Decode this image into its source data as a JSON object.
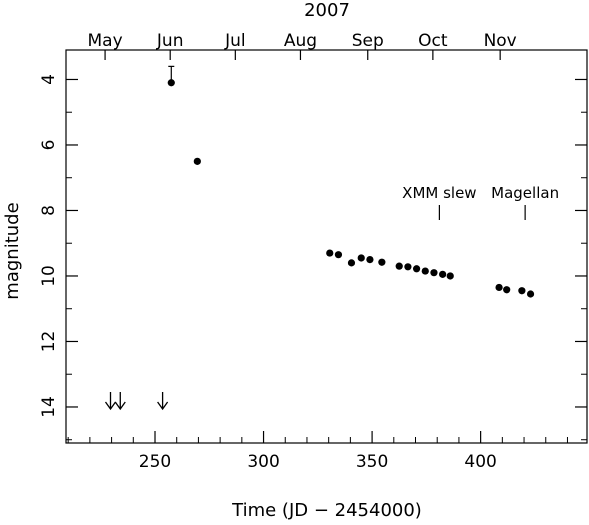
{
  "chart_data": {
    "type": "scatter",
    "top_title": "2007",
    "xlabel": "Time (JD − 2454000)",
    "ylabel": "magnitude",
    "xlim": [
      209,
      449
    ],
    "ylim": [
      15.1,
      3.1
    ],
    "y_inverted": true,
    "grid": false,
    "legend": "none",
    "x_ticks": [
      250,
      300,
      350,
      400
    ],
    "y_ticks": [
      4,
      6,
      8,
      10,
      12,
      14
    ],
    "months": [
      {
        "label": "May",
        "jd": 227
      },
      {
        "label": "Jun",
        "jd": 257
      },
      {
        "label": "Jul",
        "jd": 287
      },
      {
        "label": "Aug",
        "jd": 317
      },
      {
        "label": "Sep",
        "jd": 348
      },
      {
        "label": "Oct",
        "jd": 378
      },
      {
        "label": "Nov",
        "jd": 409
      }
    ],
    "points": [
      {
        "x": 257.5,
        "y": 4.1
      },
      {
        "x": 269.5,
        "y": 6.5
      },
      {
        "x": 330.5,
        "y": 9.3
      },
      {
        "x": 334.5,
        "y": 9.35
      },
      {
        "x": 340.5,
        "y": 9.6
      },
      {
        "x": 345.0,
        "y": 9.45
      },
      {
        "x": 349.0,
        "y": 9.5
      },
      {
        "x": 354.5,
        "y": 9.58
      },
      {
        "x": 362.5,
        "y": 9.7
      },
      {
        "x": 366.5,
        "y": 9.72
      },
      {
        "x": 370.5,
        "y": 9.78
      },
      {
        "x": 374.5,
        "y": 9.85
      },
      {
        "x": 378.5,
        "y": 9.9
      },
      {
        "x": 382.5,
        "y": 9.95
      },
      {
        "x": 386.0,
        "y": 10.0
      },
      {
        "x": 408.5,
        "y": 10.35
      },
      {
        "x": 412.0,
        "y": 10.42
      },
      {
        "x": 419.0,
        "y": 10.45
      },
      {
        "x": 423.0,
        "y": 10.55
      }
    ],
    "error_bars": [
      {
        "x": 257.5,
        "y_low": 3.6,
        "y_high": 4.1
      }
    ],
    "upper_limits": [
      {
        "x": 229.5,
        "y": 14.0
      },
      {
        "x": 234.0,
        "y": 14.0
      },
      {
        "x": 253.5,
        "y": 14.0
      }
    ],
    "annotations": [
      {
        "text": "XMM slew",
        "x": 381
      },
      {
        "text": "Magellan",
        "x": 420.5
      }
    ]
  }
}
